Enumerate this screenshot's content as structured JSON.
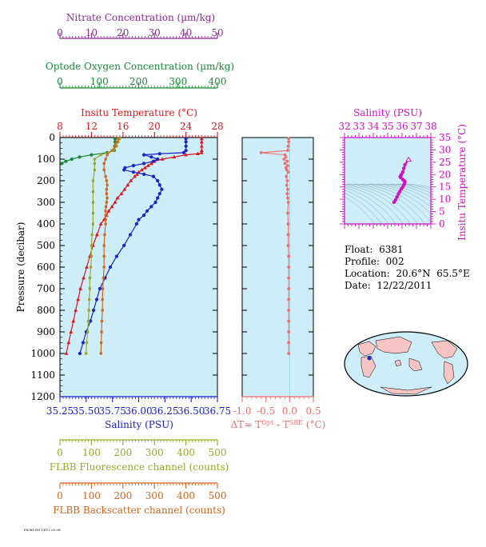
{
  "colors": {
    "nitrate": "#8a2b8e",
    "oxygen": "#1a8a35",
    "temperature": "#e0141b",
    "salinity": "#1a22c8",
    "fluorescence": "#9aa82a",
    "backscatter": "#d2651e",
    "delta": "#f07070",
    "ts_axis": "#d010c0",
    "plot_bg": "#cdeef8"
  },
  "footer_tag": "F6381/M11/E12 03:38",
  "info": {
    "float_label": "Float:",
    "float_value": "6381",
    "profile_label": "Profile:",
    "profile_value": "002",
    "location_label": "Location:",
    "location_value": "20.6°N  65.5°E",
    "date_label": "Date:",
    "date_value": "12/22/2011"
  },
  "chart_data": [
    {
      "type": "line",
      "panel": "main-profile",
      "ylabel": "Pressure (decibar)",
      "ylim": [
        1200,
        0
      ],
      "yticks": [
        0,
        100,
        200,
        300,
        400,
        500,
        600,
        700,
        800,
        900,
        1000,
        1100,
        1200
      ],
      "axes": {
        "nitrate": {
          "label": "Nitrate Concentration (µm/kg)",
          "range": [
            0,
            50
          ],
          "ticks": [
            0,
            10,
            20,
            30,
            40,
            50
          ]
        },
        "oxygen": {
          "label": "Optode Oxygen Concentration (µm/kg)",
          "range": [
            0,
            400
          ],
          "ticks": [
            0,
            100,
            200,
            300,
            400
          ]
        },
        "temperature": {
          "label": "Insitu Temperature (°C)",
          "range": [
            8,
            28
          ],
          "ticks": [
            8,
            12,
            16,
            20,
            24,
            28
          ]
        },
        "salinity": {
          "label": "Salinity (PSU)",
          "range": [
            35.25,
            36.75
          ],
          "ticks": [
            "35.25",
            "35.50",
            "35.75",
            "36.00",
            "36.25",
            "36.50",
            "36.75"
          ]
        },
        "fluorescence": {
          "label": "FLBB Fluorescence channel (counts)",
          "range": [
            0,
            500
          ],
          "ticks": [
            0,
            100,
            200,
            300,
            400,
            500
          ]
        },
        "backscatter": {
          "label": "FLBB Backscatter channel (counts)",
          "range": [
            0,
            500
          ],
          "ticks": [
            0,
            100,
            200,
            300,
            400,
            500
          ]
        }
      },
      "series": [
        {
          "key": "temperature",
          "pressure": [
            5,
            20,
            40,
            60,
            70,
            75,
            80,
            90,
            100,
            110,
            120,
            130,
            140,
            150,
            160,
            170,
            180,
            200,
            220,
            240,
            260,
            280,
            300,
            320,
            340,
            360,
            380,
            400,
            450,
            500,
            550,
            600,
            650,
            700,
            750,
            800,
            850,
            900,
            950,
            1000
          ],
          "values": [
            26.0,
            26.0,
            26.0,
            26.0,
            26.0,
            25.5,
            24.0,
            22.5,
            21.0,
            20.0,
            19.6,
            19.2,
            18.8,
            18.4,
            18.0,
            17.8,
            17.5,
            17.0,
            16.6,
            16.2,
            15.8,
            15.3,
            15.0,
            14.6,
            14.2,
            13.9,
            13.6,
            13.2,
            12.7,
            12.2,
            11.8,
            11.4,
            11.0,
            10.6,
            10.3,
            10.0,
            9.7,
            9.4,
            9.1,
            8.8
          ]
        },
        {
          "key": "salinity",
          "pressure": [
            5,
            20,
            40,
            60,
            70,
            75,
            80,
            90,
            100,
            110,
            120,
            130,
            140,
            150,
            160,
            170,
            180,
            200,
            220,
            240,
            260,
            280,
            300,
            320,
            340,
            360,
            380,
            400,
            450,
            500,
            550,
            600,
            650,
            700,
            750,
            800,
            850,
            900,
            950,
            1000
          ],
          "values": [
            36.45,
            36.45,
            36.45,
            36.45,
            36.43,
            36.2,
            36.05,
            36.12,
            36.18,
            36.14,
            36.05,
            35.95,
            35.87,
            35.86,
            35.95,
            36.05,
            36.14,
            36.18,
            36.2,
            36.22,
            36.2,
            36.18,
            36.16,
            36.12,
            36.08,
            36.05,
            36.0,
            35.98,
            35.92,
            35.86,
            35.79,
            35.73,
            35.68,
            35.63,
            35.6,
            35.57,
            35.54,
            35.5,
            35.47,
            35.44
          ]
        },
        {
          "key": "oxygen",
          "pressure": [
            5,
            20,
            40,
            60,
            70,
            80,
            90,
            100,
            110,
            120
          ],
          "values": [
            140,
            140,
            139,
            138,
            120,
            80,
            50,
            30,
            15,
            5
          ]
        },
        {
          "key": "fluorescence",
          "pressure": [
            5,
            20,
            40,
            60,
            80,
            100,
            120,
            150,
            200,
            250,
            300,
            350,
            400,
            450,
            500,
            550,
            600,
            650,
            700,
            750,
            800,
            850,
            900,
            950,
            1000
          ],
          "values": [
            190,
            185,
            180,
            170,
            130,
            110,
            110,
            110,
            105,
            105,
            105,
            105,
            105,
            102,
            100,
            100,
            98,
            95,
            95,
            93,
            92,
            90,
            88,
            85,
            83
          ]
        },
        {
          "key": "backscatter",
          "pressure": [
            5,
            20,
            40,
            60,
            80,
            100,
            120,
            150,
            180,
            200,
            220,
            240,
            260,
            280,
            300,
            320,
            340,
            360,
            380,
            400,
            450,
            500,
            550,
            600,
            650,
            700,
            750,
            800,
            850,
            900,
            950,
            1000
          ],
          "values": [
            185,
            180,
            175,
            165,
            150,
            145,
            140,
            140,
            145,
            148,
            150,
            148,
            148,
            150,
            148,
            146,
            145,
            145,
            145,
            145,
            142,
            140,
            140,
            140,
            138,
            136,
            135,
            135,
            133,
            132,
            131,
            130
          ]
        }
      ]
    },
    {
      "type": "line",
      "panel": "delta-t",
      "xlabel_main": "ΔT= T",
      "xlabel_sup1": "Opt",
      "xlabel_mid": " - T",
      "xlabel_sup2": "SBE",
      "xlabel_unit": " (°C)",
      "xlim": [
        -1.0,
        0.5
      ],
      "xticks": [
        "-1.0",
        "-0.5",
        "0.0",
        "0.5"
      ],
      "ylim": [
        1200,
        0
      ],
      "pressure": [
        5,
        20,
        40,
        60,
        70,
        80,
        90,
        100,
        110,
        120,
        130,
        140,
        150,
        160,
        180,
        200,
        220,
        240,
        260,
        280,
        300,
        350,
        400,
        450,
        500,
        550,
        600,
        650,
        700,
        750,
        800,
        850,
        900,
        950,
        1000
      ],
      "values": [
        -0.02,
        -0.02,
        -0.03,
        -0.04,
        -0.6,
        -0.1,
        -0.08,
        -0.12,
        -0.05,
        -0.1,
        -0.04,
        -0.08,
        -0.06,
        -0.03,
        -0.07,
        -0.05,
        -0.06,
        -0.04,
        -0.05,
        -0.04,
        -0.03,
        -0.04,
        -0.03,
        -0.03,
        -0.03,
        -0.02,
        -0.02,
        -0.02,
        -0.02,
        -0.02,
        -0.02,
        -0.02,
        -0.02,
        -0.02,
        -0.02
      ]
    },
    {
      "type": "line",
      "panel": "ts-diagram",
      "xlabel": "Salinity (PSU)",
      "ylabel": "Insitu Temperature (°C)",
      "xlim": [
        32,
        38
      ],
      "xticks": [
        32,
        33,
        34,
        35,
        36,
        37,
        38
      ],
      "ylim": [
        0,
        35
      ],
      "yticks": [
        0,
        5,
        10,
        15,
        20,
        25,
        30,
        35
      ],
      "salinity": [
        35.44,
        35.55,
        35.65,
        35.75,
        35.85,
        35.95,
        36.05,
        36.12,
        36.18,
        36.2,
        36.15,
        36.05,
        35.9,
        35.87,
        35.95,
        36.05,
        36.12,
        36.2,
        36.45
      ],
      "temperature": [
        8.8,
        9.8,
        11.0,
        12.2,
        13.2,
        14.2,
        15.0,
        15.8,
        16.6,
        17.0,
        17.5,
        18.0,
        18.8,
        19.2,
        20.0,
        21.0,
        22.5,
        24.0,
        26.0
      ]
    }
  ]
}
